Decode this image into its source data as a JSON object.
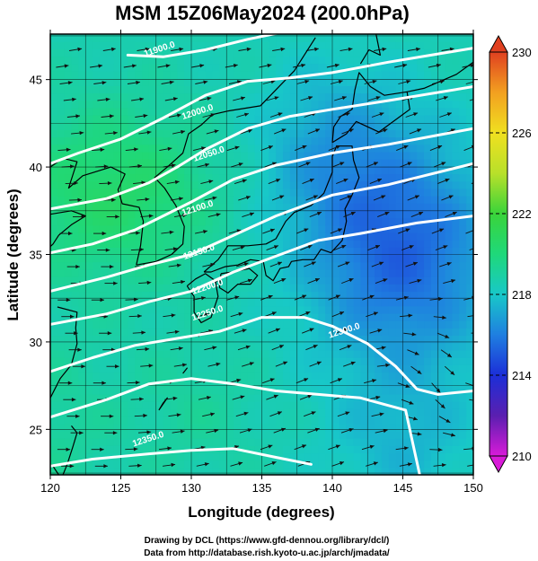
{
  "chart_data": {
    "type": "heatmap",
    "title": "MSM 15Z06May2024 (200.0hPa)",
    "xlabel": "Longitude (degrees)",
    "ylabel": "Latitude  (degrees)",
    "xlim": [
      120,
      150
    ],
    "ylim": [
      22.4,
      47.6
    ],
    "x_ticks": [
      "120",
      "125",
      "130",
      "135",
      "140",
      "145",
      "150"
    ],
    "y_ticks": [
      "25",
      "30",
      "35",
      "40",
      "45"
    ],
    "grid": true,
    "colorbar": {
      "range": [
        210,
        230
      ],
      "tick_labels": [
        "210",
        "214",
        "218",
        "222",
        "226",
        "230"
      ],
      "tick_values": [
        210,
        214,
        218,
        222,
        226,
        230
      ],
      "colors": [
        "#d81bd8",
        "#5a1fb0",
        "#1c2fd8",
        "#1f7fe0",
        "#18c8c8",
        "#1fd87a",
        "#3ad43a",
        "#b8e02a",
        "#f0e020",
        "#f2a020",
        "#e04020"
      ]
    },
    "contours": [
      {
        "label": "11900.0",
        "lon": [
          125.5,
          128,
          131,
          134,
          137,
          140,
          144,
          150
        ],
        "lat": [
          46.4,
          46.3,
          46.7,
          47.3,
          47.8,
          48.0,
          48.4,
          48.9
        ]
      },
      {
        "label": "12000.0",
        "lon": [
          120,
          122,
          125,
          128,
          131,
          134,
          137,
          140,
          144,
          150
        ],
        "lat": [
          40.2,
          40.8,
          41.6,
          42.8,
          44.1,
          44.9,
          45.1,
          45.4,
          46.0,
          46.8
        ]
      },
      {
        "label": "12050.0",
        "lon": [
          120,
          124,
          127,
          129,
          131,
          134,
          137,
          140,
          144,
          150
        ],
        "lat": [
          37.6,
          38.2,
          39.1,
          40.0,
          41.0,
          42.2,
          42.9,
          43.3,
          43.8,
          44.6
        ]
      },
      {
        "label": "12100.0",
        "lon": [
          120,
          123,
          126,
          128,
          130,
          133,
          136,
          140,
          144,
          150
        ],
        "lat": [
          35.1,
          35.6,
          36.4,
          37.2,
          38.0,
          39.3,
          40.1,
          40.8,
          41.3,
          42.2
        ]
      },
      {
        "label": "12150.0",
        "lon": [
          120,
          124,
          127,
          130,
          133,
          136,
          140,
          144,
          150
        ],
        "lat": [
          32.9,
          33.7,
          34.4,
          35.0,
          36.1,
          37.2,
          38.4,
          39.0,
          40.2
        ]
      },
      {
        "label": "12200.0",
        "lon": [
          120,
          124,
          127,
          130,
          133,
          136,
          139,
          142,
          146,
          150
        ],
        "lat": [
          31.0,
          31.6,
          32.3,
          32.9,
          34.0,
          34.9,
          35.8,
          36.2,
          36.8,
          37.2
        ]
      },
      {
        "label": "12250.0",
        "lon": [
          120,
          123,
          126,
          129,
          132,
          135,
          138,
          140,
          142.5,
          144.5,
          146,
          147.5,
          150
        ],
        "lat": [
          28.3,
          29.1,
          29.8,
          30.2,
          30.6,
          31.4,
          31.4,
          30.9,
          29.9,
          28.6,
          27.3,
          27.0,
          27.2
        ]
      },
      {
        "label": "12300.0",
        "lon": [
          120,
          124,
          127,
          130,
          133,
          136,
          139,
          142,
          145.2,
          145.6,
          146.2
        ],
        "lat": [
          25.7,
          26.7,
          27.6,
          27.9,
          27.6,
          27.2,
          27.0,
          26.8,
          26.1,
          24.6,
          22.4
        ]
      },
      {
        "label": "12350.0",
        "lon": [
          120,
          123,
          127,
          130,
          133,
          136,
          138.5
        ],
        "lat": [
          22.9,
          23.3,
          23.6,
          23.8,
          23.9,
          23.4,
          23.0
        ]
      }
    ],
    "contour_labels": [
      {
        "text": "11900.0",
        "lon": 127.8,
        "lat": 46.6
      },
      {
        "text": "12000.0",
        "lon": 130.5,
        "lat": 43.0
      },
      {
        "text": "12050.0",
        "lon": 131.3,
        "lat": 40.6
      },
      {
        "text": "12100.0",
        "lon": 130.5,
        "lat": 37.5
      },
      {
        "text": "12150.0",
        "lon": 130.6,
        "lat": 35.0
      },
      {
        "text": "12200.0",
        "lon": 131.2,
        "lat": 33.0
      },
      {
        "text": "12250.0",
        "lon": 131.2,
        "lat": 31.5
      },
      {
        "text": "12300.0",
        "lon": 140.9,
        "lat": 30.5
      },
      {
        "text": "12350.0",
        "lon": 127.0,
        "lat": 24.3
      }
    ]
  },
  "credits": {
    "line1": "Drawing by DCL (https://www.gfd-dennou.org/library/dcl/)",
    "line2": "Data from http://database.rish.kyoto-u.ac.jp/arch/jmadata/"
  }
}
